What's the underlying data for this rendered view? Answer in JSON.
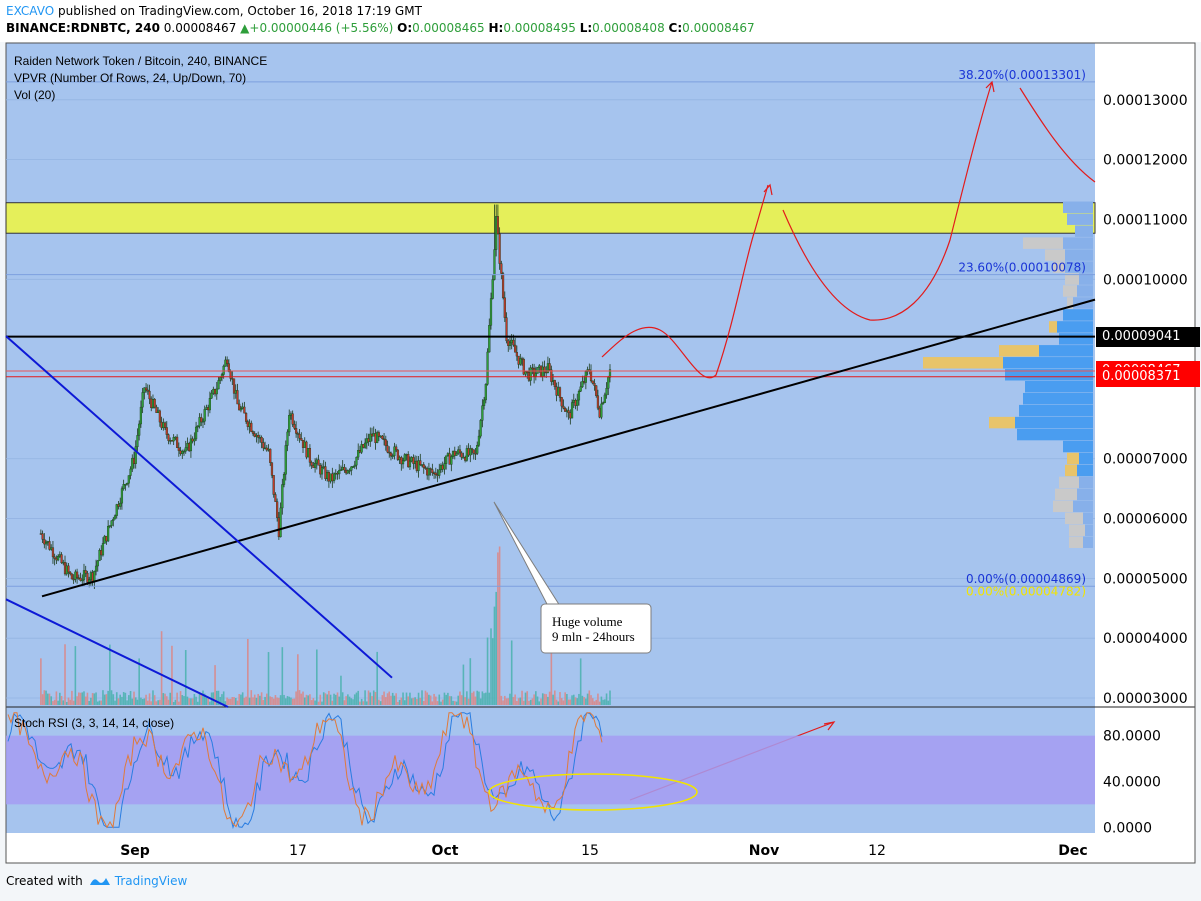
{
  "header": {
    "author": "EXCAVO",
    "published": " published on TradingView.com, October 16, 2018 17:19 GMT",
    "symbol": "BINANCE:RDNBTC, 240",
    "last": "0.00008467",
    "arrow": "▲",
    "change": "+0.00000446 (+5.56%)",
    "o_label": "O:",
    "o_val": "0.00008465",
    "h_label": "H:",
    "h_val": "0.00008495",
    "l_label": "L:",
    "l_val": "0.00008408",
    "c_label": "C:",
    "c_val": "0.00008467"
  },
  "footer": {
    "created_with": "Created with",
    "brand": "TradingView"
  },
  "colors": {
    "chart_bg": "#a6c4ee",
    "rsi_band": "#a49cf2",
    "resistance_zone": "#e5ef5a",
    "up": "#2e9e3a",
    "down": "#c0392b",
    "trend_black": "#000000",
    "channel_blue": "#0d19d6",
    "forecast_red": "#e31b1b",
    "fib_text": "#1a35d6",
    "vpvr_up": "#4a9df0",
    "vpvr_down": "#e8c46a"
  },
  "chart_data": {
    "type": "candlestick",
    "title": "Raiden Network Token / Bitcoin, 240, BINANCE",
    "indicators": [
      "VPVR (Number Of Rows, 24, Up/Down, 70)",
      "Vol (20)"
    ],
    "x_ticks": [
      "Sep",
      "17",
      "Oct",
      "15",
      "Nov",
      "12",
      "Dec"
    ],
    "y_ticks": [
      "0.00013000",
      "0.00012000",
      "0.00011000",
      "0.00010000",
      "0.00007000",
      "0.00006000",
      "0.00005000",
      "0.00004000",
      "0.00003000"
    ],
    "y_range": [
      2.85e-05,
      0.0001395
    ],
    "price_labels": [
      {
        "text": "0.00009041",
        "value": 9.041e-05,
        "bg": "#000000"
      },
      {
        "text": "0.00008467",
        "value": 8.467e-05,
        "bg": "#ff0000"
      },
      {
        "text": "0.00008371",
        "value": 8.371e-05,
        "bg": "#ff0000"
      }
    ],
    "fib_levels": [
      {
        "text": "38.20%(0.00013301)",
        "value": 0.00013301
      },
      {
        "text": "23.60%(0.00010078)",
        "value": 0.00010078
      },
      {
        "text": "0.00%(0.00004869)",
        "value": 4.869e-05
      },
      {
        "text": "0.00%(0.00004782)",
        "value": 4.782e-05
      }
    ],
    "resistance_zone": [
      0.0001077,
      0.0001128
    ],
    "horizontal_lines": [
      9.041e-05,
      8.467e-05,
      8.371e-05
    ],
    "close_series": [
      {
        "date": "2018-08-22",
        "close": 5.75e-05
      },
      {
        "date": "2018-08-25",
        "close": 5e-05
      },
      {
        "date": "2018-08-27",
        "close": 5.05e-05
      },
      {
        "date": "2018-08-29",
        "close": 6.05e-05
      },
      {
        "date": "2018-08-31",
        "close": 7e-05
      },
      {
        "date": "2018-09-01",
        "close": 8.2e-05
      },
      {
        "date": "2018-09-03",
        "close": 7.45e-05
      },
      {
        "date": "2018-09-05",
        "close": 7.1e-05
      },
      {
        "date": "2018-09-08",
        "close": 8.2e-05
      },
      {
        "date": "2018-09-09",
        "close": 8.7e-05
      },
      {
        "date": "2018-09-10",
        "close": 7.9e-05
      },
      {
        "date": "2018-09-13",
        "close": 7.1e-05
      },
      {
        "date": "2018-09-14",
        "close": 5.8e-05
      },
      {
        "date": "2018-09-15",
        "close": 7.8e-05
      },
      {
        "date": "2018-09-17",
        "close": 7e-05
      },
      {
        "date": "2018-09-19",
        "close": 6.65e-05
      },
      {
        "date": "2018-09-21",
        "close": 6.9e-05
      },
      {
        "date": "2018-09-23",
        "close": 7.4e-05
      },
      {
        "date": "2018-09-26",
        "close": 7e-05
      },
      {
        "date": "2018-09-29",
        "close": 6.75e-05
      },
      {
        "date": "2018-10-01",
        "close": 7.1e-05
      },
      {
        "date": "2018-10-03",
        "close": 7.05e-05
      },
      {
        "date": "2018-10-04",
        "close": 8.3e-05
      },
      {
        "date": "2018-10-05",
        "close": 0.00011
      },
      {
        "date": "2018-10-06",
        "close": 9.05e-05
      },
      {
        "date": "2018-10-08",
        "close": 8.4e-05
      },
      {
        "date": "2018-10-10",
        "close": 8.5e-05
      },
      {
        "date": "2018-10-12",
        "close": 7.7e-05
      },
      {
        "date": "2018-10-14",
        "close": 8.5e-05
      },
      {
        "date": "2018-10-15",
        "close": 7.8e-05
      },
      {
        "date": "2018-10-16",
        "close": 8.47e-05
      }
    ],
    "volume_spike_date": "2018-10-05",
    "stoch_rsi": {
      "label": "Stoch RSI (3, 3, 14, 14, close)",
      "y_ticks": [
        "80.0000",
        "40.0000",
        "0.0000"
      ],
      "band": [
        20,
        80
      ],
      "y_range": [
        -5,
        105
      ]
    },
    "annotation": {
      "line1": "Huge volume",
      "line2": "9 mln - 24hours"
    }
  }
}
